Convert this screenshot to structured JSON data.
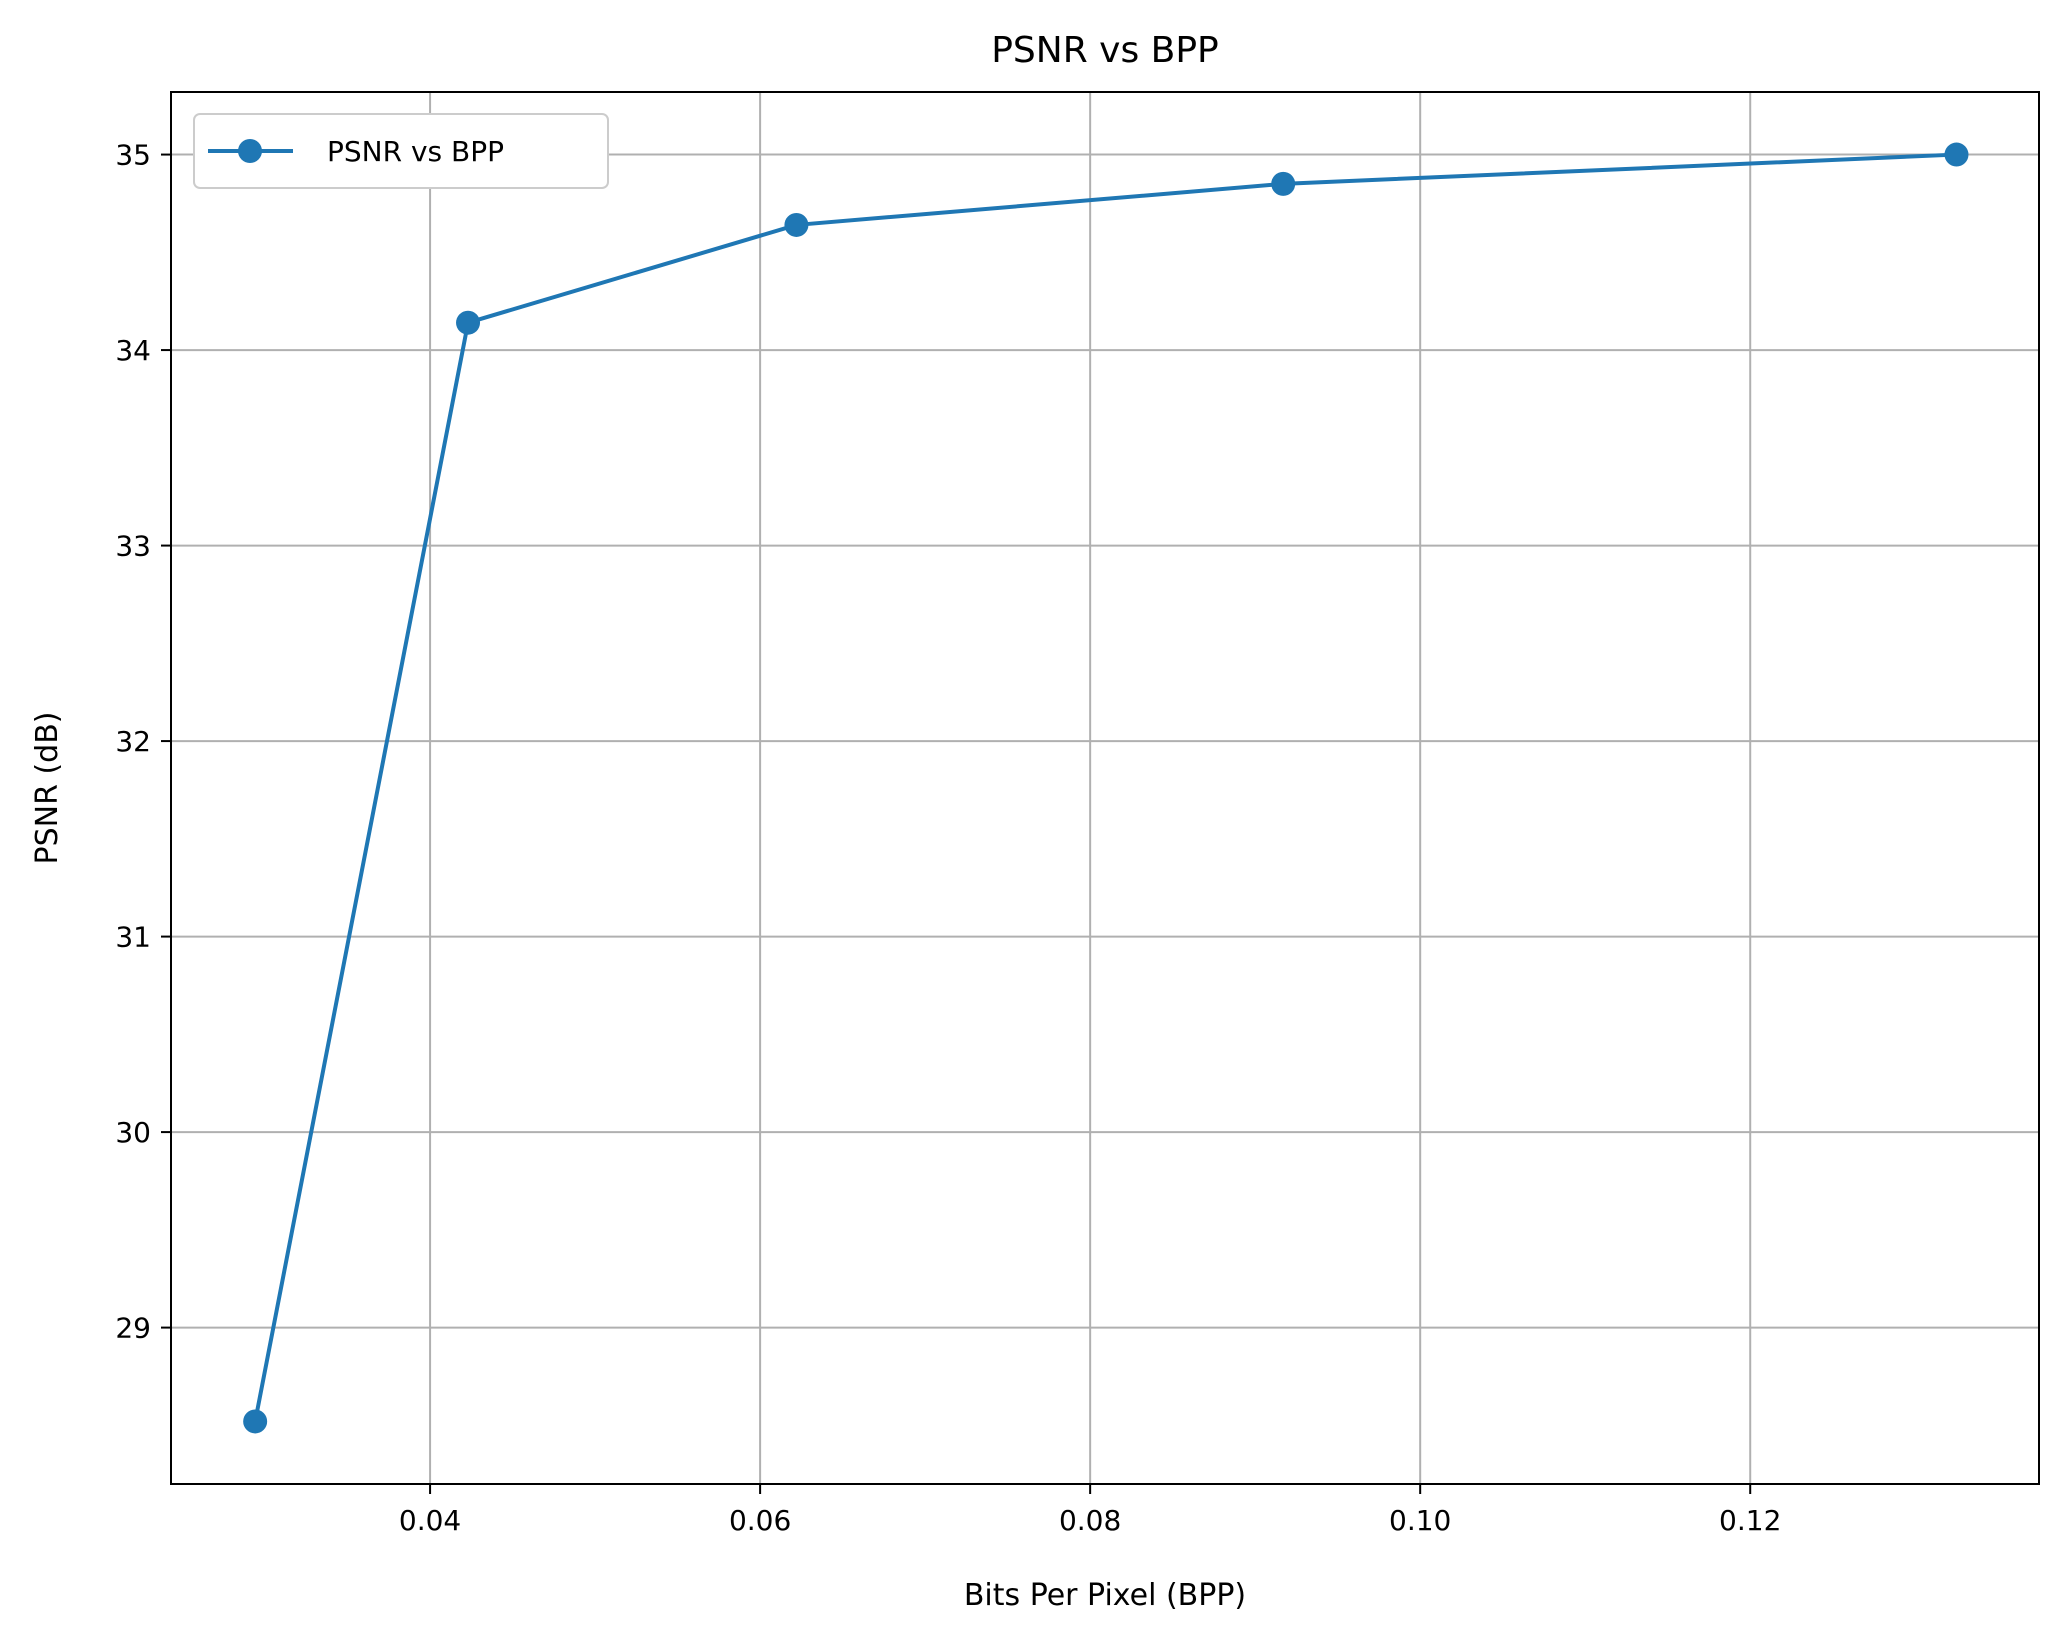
{
  "chart_data": {
    "type": "line",
    "title": "PSNR vs BPP",
    "xlabel": "Bits Per Pixel (BPP)",
    "ylabel": "PSNR (dB)",
    "xlim": [
      0.0243,
      0.1375
    ],
    "ylim": [
      28.2,
      35.32
    ],
    "xticks": [
      0.04,
      0.06,
      0.08,
      0.1,
      0.12
    ],
    "xtick_labels": [
      "0.04",
      "0.06",
      "0.08",
      "0.10",
      "0.12"
    ],
    "yticks": [
      29,
      30,
      31,
      32,
      33,
      34,
      35
    ],
    "ytick_labels": [
      "29",
      "30",
      "31",
      "32",
      "33",
      "34",
      "35"
    ],
    "grid": true,
    "legend_position": "top-left",
    "color": "#1f77b4",
    "series": [
      {
        "name": "PSNR vs BPP",
        "x": [
          0.0294,
          0.0423,
          0.0622,
          0.0917,
          0.1325
        ],
        "y": [
          28.52,
          34.14,
          34.64,
          34.85,
          35.0
        ]
      }
    ]
  }
}
